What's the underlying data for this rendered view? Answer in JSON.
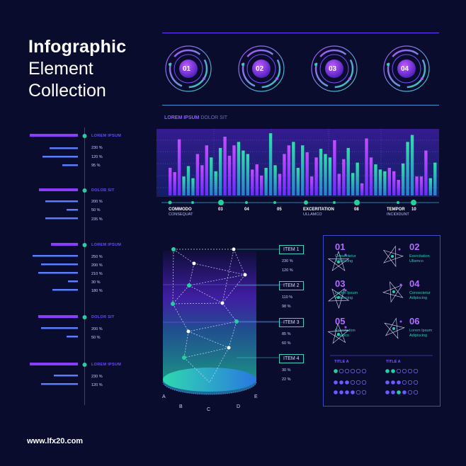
{
  "header": {
    "title_bold": "Infographic",
    "title_line2": "Element",
    "title_line3": "Collection"
  },
  "footer": {
    "url": "www.lfx20.com"
  },
  "rings": [
    "01",
    "02",
    "03",
    "04"
  ],
  "chart_header": {
    "bold": "LOREM IPSUM",
    "light": "DOLOR SIT"
  },
  "left_groups": [
    {
      "label": "LOREM IPSUM",
      "values": [
        "230 %",
        "120 %",
        "95 %"
      ]
    },
    {
      "label": "DOLOR SIT",
      "values": [
        "200 %",
        "50 %",
        "235 %"
      ]
    },
    {
      "label": "LOREM IPSUM",
      "values": [
        "250 %",
        "200 %",
        "210 %",
        "30 %",
        "180 %"
      ]
    },
    {
      "label": "DOLOR SIT",
      "values": [
        "200 %",
        "50 %"
      ]
    },
    {
      "label": "LOREM IPSUM",
      "values": [
        "230 %",
        "120 %"
      ]
    }
  ],
  "timeline": {
    "numbers": [
      "03",
      "04",
      "05",
      "08",
      "10"
    ],
    "labels": [
      {
        "title": "COMMODO",
        "sub": "CONSEQUAT"
      },
      {
        "title": "EXCERITATION",
        "sub": "ULLAMCO"
      },
      {
        "title": "TEMPOR",
        "sub": "INCIDIDUNT"
      }
    ]
  },
  "chart_data": {
    "type": "bar",
    "series": [
      {
        "values": [
          32,
          27,
          65,
          22,
          34,
          20,
          48,
          35,
          58,
          44,
          28,
          55,
          68,
          46,
          58,
          62,
          52,
          48,
          30,
          36,
          23,
          32,
          72,
          35,
          25,
          48,
          58,
          62,
          32,
          58,
          50,
          22,
          44,
          54,
          48,
          44,
          64,
          25,
          42,
          55,
          26,
          38,
          14,
          66,
          44,
          36,
          30,
          28,
          32,
          28,
          18,
          37,
          62,
          70,
          22,
          22,
          52,
          20,
          38
        ]
      }
    ]
  },
  "items": [
    {
      "label": "ITEM 1",
      "values": [
        "230 %",
        "120 %"
      ]
    },
    {
      "label": "ITEM 2",
      "values": [
        "110 %",
        "98 %"
      ]
    },
    {
      "label": "ITEM 3",
      "values": [
        "85 %",
        "60 %"
      ]
    },
    {
      "label": "ITEM 4",
      "values": [
        "30 %",
        "22 %"
      ]
    }
  ],
  "axis_letters": [
    "A",
    "B",
    "C",
    "D",
    "E"
  ],
  "grid_items": [
    {
      "num": "01",
      "line1": "Consectetur",
      "line2": "Adipiscing"
    },
    {
      "num": "02",
      "line1": "Exercitation",
      "line2": "Ullamco"
    },
    {
      "num": "03",
      "line1": "Lorem Ipsum",
      "line2": "Adipiscing"
    },
    {
      "num": "04",
      "line1": "Consectetur",
      "line2": "Adipiscing"
    },
    {
      "num": "05",
      "line1": "Exercitation",
      "line2": "Ullamco"
    },
    {
      "num": "06",
      "line1": "Lorem Ipsum",
      "line2": "Adipiscing"
    }
  ],
  "dot_titles": [
    "TITLE A",
    "TITLE A"
  ]
}
